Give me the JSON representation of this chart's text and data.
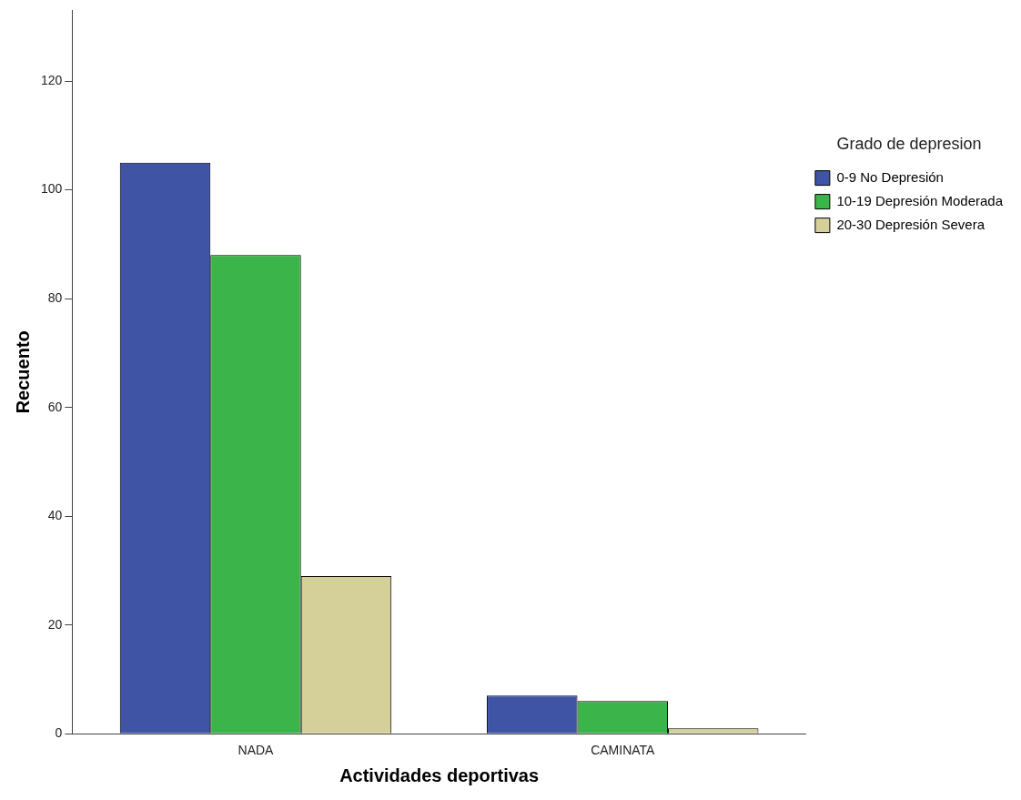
{
  "chart_data": {
    "type": "bar",
    "xlabel": "Actividades deportivas",
    "ylabel": "Recuento",
    "legend_title": "Grado de depresion",
    "categories": [
      "NADA",
      "CAMINATA"
    ],
    "series": [
      {
        "name": "0-9 No Depresión",
        "color": "#3f54a4",
        "values": [
          105,
          7
        ]
      },
      {
        "name": "10-19 Depresión Moderada",
        "color": "#3bb54a",
        "values": [
          88,
          6
        ]
      },
      {
        "name": "20-30 Depresión Severa",
        "color": "#d5cf9a",
        "values": [
          29,
          1
        ]
      }
    ],
    "ylim": [
      0,
      133
    ],
    "yticks": [
      0,
      20,
      40,
      60,
      80,
      100,
      120
    ],
    "grid": false,
    "legend": "right"
  }
}
